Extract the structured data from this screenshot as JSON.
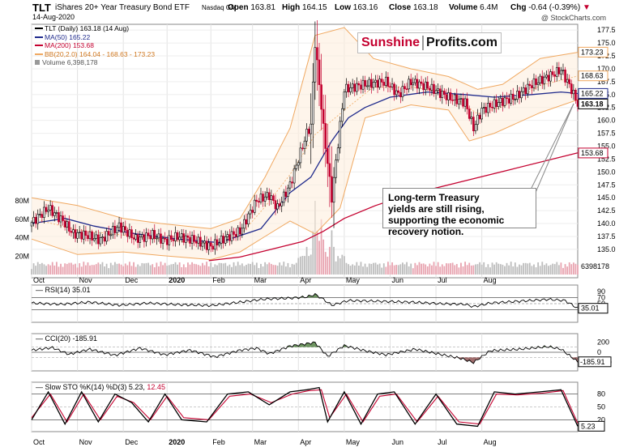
{
  "header": {
    "ticker": "TLT",
    "name": "iShares 20+ Year Treasury Bond ETF",
    "exchange": "Nasdaq GM",
    "date": "14-Aug-2020",
    "open_label": "Open",
    "open": "163.81",
    "high_label": "High",
    "high": "164.15",
    "low_label": "Low",
    "low": "163.16",
    "close_label": "Close",
    "close": "163.18",
    "volume_label": "Volume",
    "volume": "6.4M",
    "chg_label": "Chg",
    "chg": "-0.64 (-0.39%)",
    "watermark": "@ StockCharts.com"
  },
  "legend": {
    "tlt": "TLT (Daily) 163.18 (14 Aug)",
    "ma50": "MA(50) 165.22",
    "ma200": "MA(200) 153.68",
    "bb": "BB(20,2.0) 164.04 - 168.63 - 173.23",
    "volume": "Volume 6,398,178"
  },
  "logo": {
    "part1": "Sunshine",
    "part2": "Profits.com"
  },
  "annotation": {
    "line1": "Long-term Treasury",
    "line2": "yields are still rising,",
    "line3": "supporting the economic",
    "line4": "recovery notion."
  },
  "panels": {
    "rsi_title": "RSI(14) 35.01",
    "cci_title": "CCI(20) -185.91",
    "sto_title_k": "Slow STO %K(14) %D(3) 5.23,",
    "sto_title_d": "12.45"
  },
  "colors": {
    "up": "#000000",
    "down": "#c4002f",
    "ma50": "#1f2a8c",
    "ma200": "#c4002f",
    "bb": "#f0a860",
    "volume": "#b8b8b8",
    "positive_fill": "#4a7a3a",
    "negative_fill": "#8a4a4a"
  },
  "chart_data": [
    {
      "type": "candlestick",
      "title": "TLT iShares 20+ Year Treasury Bond ETF",
      "x_labels": [
        "Oct",
        "Nov",
        "Dec",
        "2020",
        "Feb",
        "Mar",
        "Apr",
        "May",
        "Jun",
        "Jul",
        "Aug"
      ],
      "ylim": [
        132.0,
        178.0
      ],
      "y_ticks": [
        177.5,
        175.0,
        172.5,
        170.0,
        167.5,
        165.0,
        162.5,
        160.0,
        157.5,
        155.0,
        152.5,
        150.0,
        147.5,
        145.0,
        142.5,
        140.0,
        137.5,
        135.0
      ],
      "right_labels": [
        "173.23",
        "168.63",
        "165.22",
        "163.18",
        "153.68"
      ],
      "price_path": [
        [
          0,
          140.2
        ],
        [
          8,
          143.0
        ],
        [
          15,
          140.5
        ],
        [
          20,
          138.0
        ],
        [
          26,
          137.8
        ],
        [
          33,
          136.8
        ],
        [
          42,
          139.5
        ],
        [
          50,
          137.0
        ],
        [
          58,
          137.8
        ],
        [
          64,
          136.6
        ],
        [
          70,
          137.5
        ],
        [
          78,
          136.8
        ],
        [
          86,
          135.5
        ],
        [
          92,
          137.0
        ],
        [
          100,
          138.5
        ],
        [
          108,
          144.5
        ],
        [
          114,
          145.5
        ],
        [
          118,
          143.0
        ],
        [
          124,
          147.5
        ],
        [
          128,
          152.5
        ],
        [
          132,
          157.5
        ],
        [
          134,
          159.0
        ],
        [
          136,
          175.0
        ],
        [
          138,
          167.0
        ],
        [
          140,
          158.5
        ],
        [
          144,
          145.0
        ],
        [
          150,
          166.0
        ],
        [
          160,
          167.0
        ],
        [
          170,
          167.5
        ],
        [
          176,
          165.0
        ],
        [
          182,
          167.5
        ],
        [
          190,
          166.5
        ],
        [
          200,
          164.5
        ],
        [
          208,
          163.5
        ],
        [
          212,
          158.5
        ],
        [
          216,
          162.0
        ],
        [
          224,
          163.5
        ],
        [
          232,
          164.5
        ],
        [
          240,
          167.0
        ],
        [
          248,
          168.5
        ],
        [
          254,
          169.8
        ],
        [
          259,
          166.0
        ],
        [
          262,
          163.2
        ]
      ],
      "ma50_path": [
        [
          0,
          140.0
        ],
        [
          16,
          141.0
        ],
        [
          30,
          139.5
        ],
        [
          50,
          138.0
        ],
        [
          70,
          137.0
        ],
        [
          90,
          136.3
        ],
        [
          110,
          139.0
        ],
        [
          124,
          146.0
        ],
        [
          134,
          149.0
        ],
        [
          144,
          156.0
        ],
        [
          152,
          160.5
        ],
        [
          160,
          162.5
        ],
        [
          172,
          164.5
        ],
        [
          190,
          165.5
        ],
        [
          208,
          165.0
        ],
        [
          222,
          164.5
        ],
        [
          240,
          165.0
        ],
        [
          254,
          165.5
        ],
        [
          262,
          165.2
        ]
      ],
      "ma200_path": [
        [
          85,
          132.8
        ],
        [
          100,
          133.5
        ],
        [
          115,
          135.0
        ],
        [
          130,
          136.5
        ],
        [
          140,
          138.5
        ],
        [
          150,
          141.0
        ],
        [
          165,
          143.5
        ],
        [
          180,
          145.5
        ],
        [
          205,
          148.0
        ],
        [
          230,
          150.5
        ],
        [
          262,
          153.7
        ]
      ],
      "bb_upper_path": [
        [
          0,
          145.0
        ],
        [
          22,
          143.5
        ],
        [
          44,
          141.0
        ],
        [
          62,
          140.0
        ],
        [
          86,
          139.0
        ],
        [
          100,
          141.0
        ],
        [
          112,
          149.0
        ],
        [
          124,
          158.5
        ],
        [
          136,
          176.5
        ],
        [
          150,
          178.0
        ],
        [
          164,
          172.0
        ],
        [
          182,
          170.0
        ],
        [
          200,
          168.5
        ],
        [
          214,
          166.0
        ],
        [
          226,
          167.0
        ],
        [
          244,
          172.0
        ],
        [
          262,
          173.2
        ]
      ],
      "bb_lower_path": [
        [
          0,
          137.0
        ],
        [
          22,
          134.0
        ],
        [
          44,
          134.5
        ],
        [
          62,
          133.8
        ],
        [
          86,
          133.0
        ],
        [
          100,
          134.5
        ],
        [
          112,
          137.5
        ],
        [
          124,
          140.5
        ],
        [
          136,
          138.0
        ],
        [
          148,
          143.0
        ],
        [
          160,
          160.5
        ],
        [
          182,
          163.0
        ],
        [
          200,
          162.0
        ],
        [
          210,
          156.0
        ],
        [
          222,
          157.5
        ],
        [
          244,
          161.5
        ],
        [
          262,
          164.0
        ]
      ],
      "volume_axis_labels": [
        "80M",
        "60M",
        "40M",
        "20M"
      ],
      "volume_last": "6398178",
      "volume_spikes": [
        [
          136,
          72
        ],
        [
          139,
          52
        ],
        [
          144,
          40
        ],
        [
          140,
          30
        ],
        [
          150,
          20
        ],
        [
          132,
          22
        ],
        [
          128,
          18
        ]
      ]
    },
    {
      "type": "line",
      "title": "RSI(14) 35.01",
      "ylim": [
        0,
        100
      ],
      "y_ticks": [
        90,
        70,
        50,
        30
      ],
      "last_label": "35.01",
      "path": [
        [
          0,
          52
        ],
        [
          14,
          48
        ],
        [
          28,
          55
        ],
        [
          42,
          45
        ],
        [
          56,
          52
        ],
        [
          70,
          47
        ],
        [
          86,
          44
        ],
        [
          100,
          55
        ],
        [
          112,
          65
        ],
        [
          124,
          68
        ],
        [
          132,
          72
        ],
        [
          136,
          80
        ],
        [
          140,
          64
        ],
        [
          144,
          45
        ],
        [
          152,
          60
        ],
        [
          166,
          58
        ],
        [
          182,
          55
        ],
        [
          196,
          50
        ],
        [
          208,
          48
        ],
        [
          212,
          40
        ],
        [
          220,
          52
        ],
        [
          234,
          58
        ],
        [
          248,
          64
        ],
        [
          256,
          60
        ],
        [
          262,
          35
        ]
      ]
    },
    {
      "type": "line",
      "title": "CCI(20) -185.91",
      "ylim": [
        -300,
        300
      ],
      "y_ticks": [
        200,
        0,
        -200
      ],
      "last_label": "-185.91",
      "path": [
        [
          0,
          40
        ],
        [
          10,
          90
        ],
        [
          18,
          -40
        ],
        [
          28,
          60
        ],
        [
          40,
          -60
        ],
        [
          52,
          80
        ],
        [
          64,
          -50
        ],
        [
          76,
          40
        ],
        [
          88,
          -90
        ],
        [
          100,
          40
        ],
        [
          108,
          80
        ],
        [
          114,
          -30
        ],
        [
          124,
          120
        ],
        [
          136,
          190
        ],
        [
          142,
          -80
        ],
        [
          150,
          130
        ],
        [
          160,
          30
        ],
        [
          170,
          -50
        ],
        [
          184,
          60
        ],
        [
          196,
          -40
        ],
        [
          206,
          -120
        ],
        [
          212,
          -200
        ],
        [
          220,
          30
        ],
        [
          234,
          60
        ],
        [
          248,
          110
        ],
        [
          254,
          60
        ],
        [
          262,
          -186
        ]
      ]
    },
    {
      "type": "line",
      "title": "Slow STO %K(14) %D(3) 5.23, 12.45",
      "ylim": [
        0,
        100
      ],
      "y_ticks": [
        80,
        50,
        20
      ],
      "last_label": "5.23",
      "series": [
        {
          "name": "%K",
          "values": [
            [
              0,
              20
            ],
            [
              8,
              85
            ],
            [
              16,
              10
            ],
            [
              24,
              85
            ],
            [
              32,
              15
            ],
            [
              40,
              80
            ],
            [
              48,
              60
            ],
            [
              56,
              15
            ],
            [
              64,
              80
            ],
            [
              72,
              20
            ],
            [
              84,
              15
            ],
            [
              94,
              80
            ],
            [
              104,
              85
            ],
            [
              114,
              55
            ],
            [
              124,
              85
            ],
            [
              132,
              90
            ],
            [
              138,
              95
            ],
            [
              142,
              15
            ],
            [
              150,
              85
            ],
            [
              158,
              10
            ],
            [
              166,
              80
            ],
            [
              174,
              85
            ],
            [
              184,
              10
            ],
            [
              194,
              80
            ],
            [
              204,
              10
            ],
            [
              214,
              5
            ],
            [
              222,
              85
            ],
            [
              232,
              80
            ],
            [
              244,
              85
            ],
            [
              254,
              90
            ],
            [
              262,
              5
            ]
          ]
        },
        {
          "name": "%D",
          "values": [
            [
              0,
              25
            ],
            [
              9,
              80
            ],
            [
              17,
              15
            ],
            [
              25,
              80
            ],
            [
              33,
              20
            ],
            [
              41,
              75
            ],
            [
              49,
              60
            ],
            [
              57,
              20
            ],
            [
              65,
              75
            ],
            [
              73,
              25
            ],
            [
              85,
              20
            ],
            [
              95,
              75
            ],
            [
              105,
              80
            ],
            [
              115,
              60
            ],
            [
              125,
              80
            ],
            [
              133,
              88
            ],
            [
              139,
              90
            ],
            [
              143,
              25
            ],
            [
              151,
              80
            ],
            [
              159,
              15
            ],
            [
              167,
              75
            ],
            [
              175,
              80
            ],
            [
              185,
              15
            ],
            [
              195,
              75
            ],
            [
              205,
              15
            ],
            [
              215,
              10
            ],
            [
              223,
              80
            ],
            [
              233,
              78
            ],
            [
              245,
              82
            ],
            [
              255,
              88
            ],
            [
              262,
              12
            ]
          ]
        }
      ]
    }
  ]
}
